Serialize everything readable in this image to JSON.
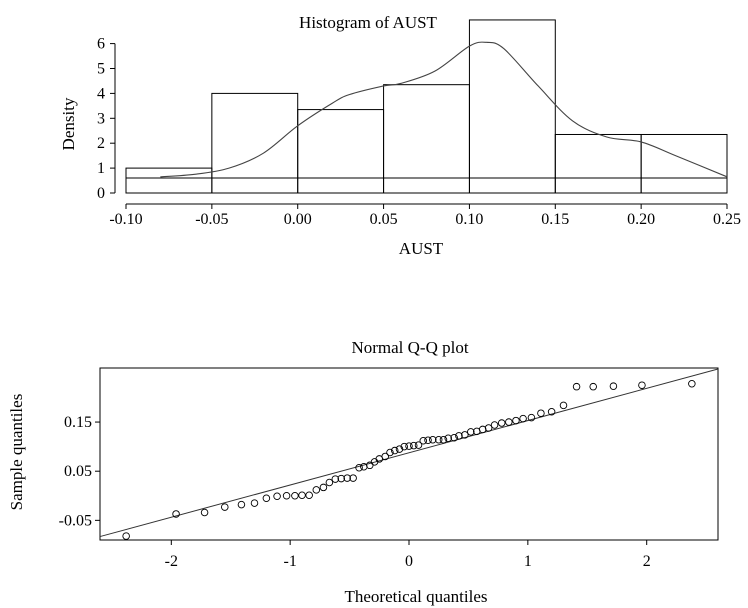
{
  "chart_data": [
    {
      "type": "histogram",
      "title": "Histogram of AUST",
      "xlabel": "AUST",
      "ylabel": "Density",
      "xlim": [
        -0.1,
        0.25
      ],
      "ylim": [
        0,
        7
      ],
      "x_ticks": [
        "-0.10",
        "-0.05",
        "0.00",
        "0.05",
        "0.10",
        "0.15",
        "0.20",
        "0.25"
      ],
      "x_tick_values": [
        -0.1,
        -0.05,
        0.0,
        0.05,
        0.1,
        0.15,
        0.2,
        0.25
      ],
      "y_ticks": [
        "0",
        "1",
        "2",
        "3",
        "4",
        "5",
        "6"
      ],
      "y_tick_values": [
        0,
        1,
        2,
        3,
        4,
        5,
        6
      ],
      "bins": [
        {
          "x0": -0.1,
          "x1": -0.05,
          "density": 1.0
        },
        {
          "x0": -0.05,
          "x1": 0.0,
          "density": 4.0
        },
        {
          "x0": 0.0,
          "x1": 0.05,
          "density": 3.35
        },
        {
          "x0": 0.05,
          "x1": 0.1,
          "density": 4.35
        },
        {
          "x0": 0.1,
          "x1": 0.15,
          "density": 6.95
        },
        {
          "x0": 0.15,
          "x1": 0.2,
          "density": 2.35
        },
        {
          "x0": 0.2,
          "x1": 0.25,
          "density": 2.35
        }
      ],
      "reference_line_y": 0.6,
      "density_curve": {
        "x": [
          -0.08,
          -0.06,
          -0.04,
          -0.02,
          0.0,
          0.02,
          0.03,
          0.05,
          0.06,
          0.08,
          0.1,
          0.11,
          0.12,
          0.14,
          0.16,
          0.18,
          0.2,
          0.22,
          0.25
        ],
        "y": [
          0.65,
          0.75,
          1.0,
          1.6,
          2.7,
          3.6,
          3.95,
          4.3,
          4.4,
          4.9,
          5.9,
          6.05,
          5.8,
          4.3,
          2.9,
          2.25,
          2.05,
          1.5,
          0.65
        ]
      }
    },
    {
      "type": "scatter",
      "title": "Normal Q-Q plot",
      "xlabel": "Theoretical quantiles",
      "ylabel": "Sample quantiles",
      "xlim": [
        -2.6,
        2.6
      ],
      "ylim": [
        -0.09,
        0.26
      ],
      "x_ticks": [
        "-2",
        "-1",
        "0",
        "1",
        "2"
      ],
      "x_tick_values": [
        -2,
        -1,
        0,
        1,
        2
      ],
      "y_ticks": [
        "-0.05",
        "0.05",
        "0.15"
      ],
      "y_tick_values": [
        -0.05,
        0.05,
        0.15
      ],
      "reference_line": {
        "x": [
          -2.6,
          2.6
        ],
        "y": [
          -0.083,
          0.258
        ]
      },
      "points": {
        "x": [
          -2.38,
          -1.96,
          -1.72,
          -1.55,
          -1.41,
          -1.3,
          -1.2,
          -1.11,
          -1.03,
          -0.96,
          -0.9,
          -0.84,
          -0.78,
          -0.72,
          -0.67,
          -0.62,
          -0.57,
          -0.52,
          -0.47,
          -0.42,
          -0.38,
          -0.33,
          -0.29,
          -0.25,
          -0.2,
          -0.16,
          -0.12,
          -0.08,
          -0.04,
          0.0,
          0.04,
          0.08,
          0.12,
          0.16,
          0.2,
          0.25,
          0.29,
          0.33,
          0.38,
          0.42,
          0.47,
          0.52,
          0.57,
          0.62,
          0.67,
          0.72,
          0.78,
          0.84,
          0.9,
          0.96,
          1.03,
          1.11,
          1.2,
          1.3,
          1.41,
          1.55,
          1.72,
          1.96,
          2.38
        ],
        "y": [
          -0.082,
          -0.037,
          -0.034,
          -0.023,
          -0.018,
          -0.015,
          -0.005,
          -0.001,
          0.0,
          0.0,
          0.001,
          0.001,
          0.012,
          0.017,
          0.027,
          0.034,
          0.035,
          0.036,
          0.036,
          0.057,
          0.059,
          0.062,
          0.069,
          0.075,
          0.08,
          0.088,
          0.092,
          0.095,
          0.1,
          0.101,
          0.102,
          0.103,
          0.112,
          0.113,
          0.114,
          0.114,
          0.114,
          0.117,
          0.118,
          0.122,
          0.124,
          0.13,
          0.131,
          0.135,
          0.138,
          0.144,
          0.148,
          0.15,
          0.153,
          0.157,
          0.159,
          0.168,
          0.171,
          0.184,
          0.222,
          0.222,
          0.223,
          0.225,
          0.228
        ]
      }
    }
  ]
}
